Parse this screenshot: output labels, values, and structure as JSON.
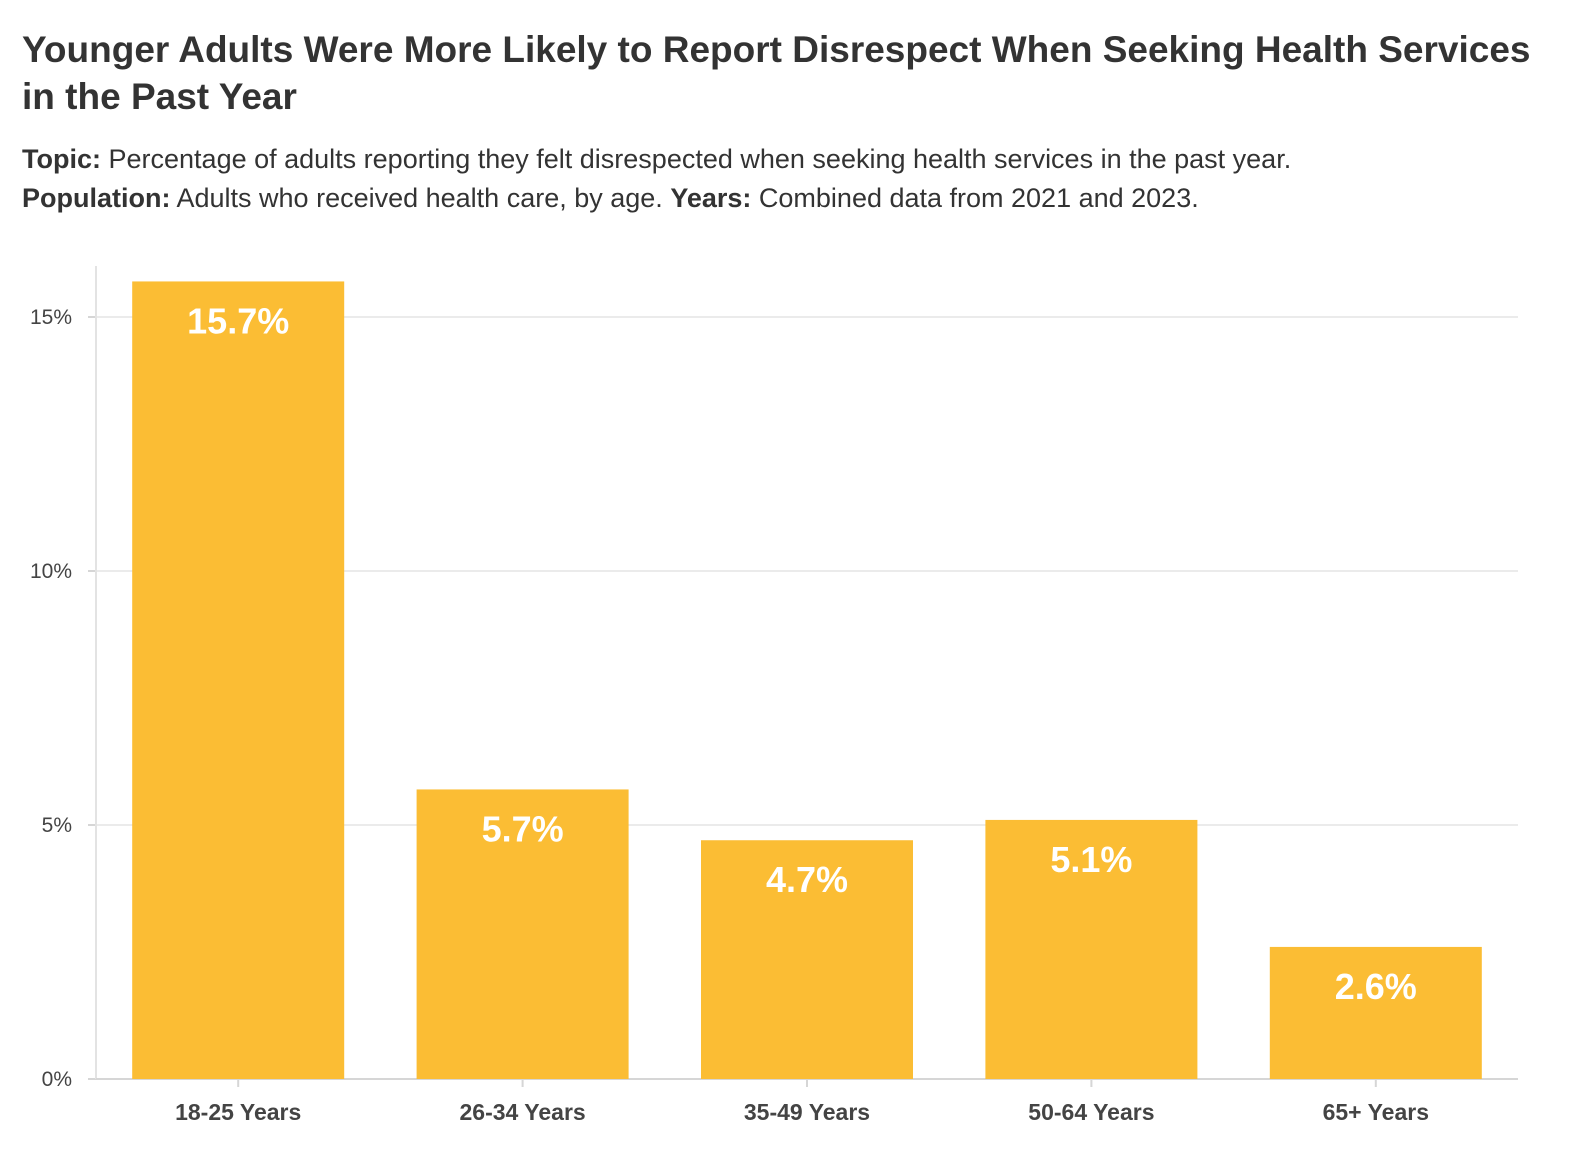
{
  "header": {
    "title": "Younger Adults Were More Likely to Report Disrespect When Seeking Health Services in the Past Year",
    "topic_label": "Topic:",
    "topic_text": "Percentage of adults reporting they felt disrespected when seeking health services in the past year.",
    "population_label": "Population:",
    "population_text": "Adults who received health care, by age.",
    "years_label": "Years:",
    "years_text": "Combined data from 2021 and 2023."
  },
  "chart_data": {
    "type": "bar",
    "title": "Younger Adults Were More Likely to Report Disrespect When Seeking Health Services in the Past Year",
    "xlabel": "",
    "ylabel": "",
    "categories": [
      "18-25 Years",
      "26-34 Years",
      "35-49 Years",
      "50-64 Years",
      "65+ Years"
    ],
    "values": [
      15.7,
      5.7,
      4.7,
      5.1,
      2.6
    ],
    "data_labels": [
      "15.7%",
      "5.7%",
      "4.7%",
      "5.1%",
      "2.6%"
    ],
    "ylim": [
      0,
      16
    ],
    "yticks": [
      0,
      5,
      10,
      15
    ],
    "ytick_labels": [
      "0%",
      "5%",
      "10%",
      "15%"
    ],
    "grid": true,
    "legend": "none",
    "bar_color": "#FBBD34",
    "label_color": "#FFFFFF"
  }
}
